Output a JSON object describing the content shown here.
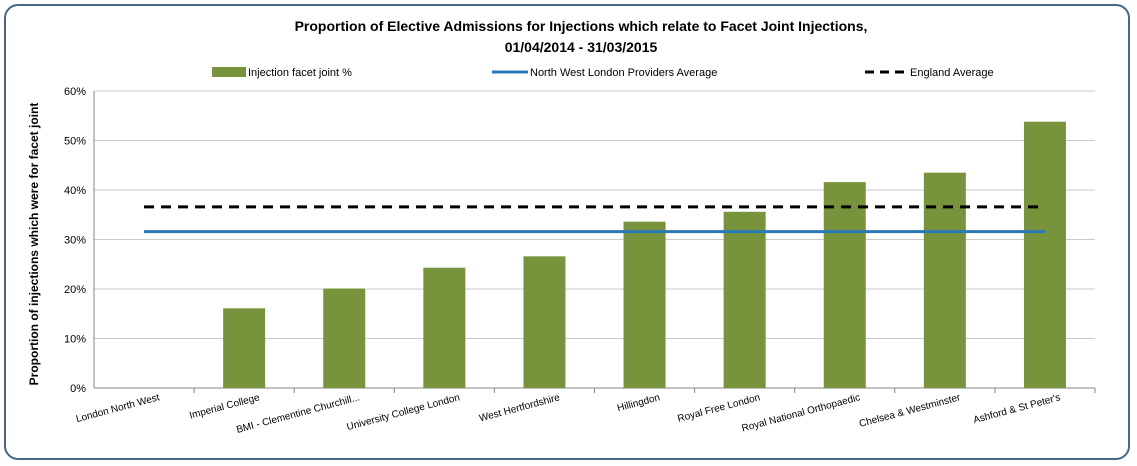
{
  "chart_data": {
    "type": "bar",
    "title_line1": "Proportion of Elective Admissions for Injections which relate to Facet Joint Injections,",
    "title_line2": "01/04/2014 - 31/03/2015",
    "ylabel": "Proportion of injections which were for facet joint",
    "ylim": [
      0,
      60
    ],
    "yticks": [
      "0%",
      "10%",
      "20%",
      "30%",
      "40%",
      "50%",
      "60%"
    ],
    "categories": [
      "London North West",
      "Imperial College",
      "BMI - Clementine Churchill...",
      "University College London",
      "West Hertfordshire",
      "Hillingdon",
      "Royal Free London",
      "Royal National Orthopaedic",
      "Chelsea & Westminster",
      "Ashford & St Peter's"
    ],
    "series": [
      {
        "name": "Injection facet joint %",
        "kind": "bar",
        "color": "#77933c",
        "values": [
          0,
          16.1,
          20.1,
          24.3,
          26.6,
          33.6,
          35.6,
          41.6,
          43.5,
          53.8
        ]
      },
      {
        "name": "North West London Providers Average",
        "kind": "line",
        "color": "#2a7ab8",
        "value": 31.6
      },
      {
        "name": "England Average",
        "kind": "dashed-line",
        "color": "#000000",
        "value": 36.6
      }
    ],
    "grid": true,
    "legend_position": "top"
  }
}
